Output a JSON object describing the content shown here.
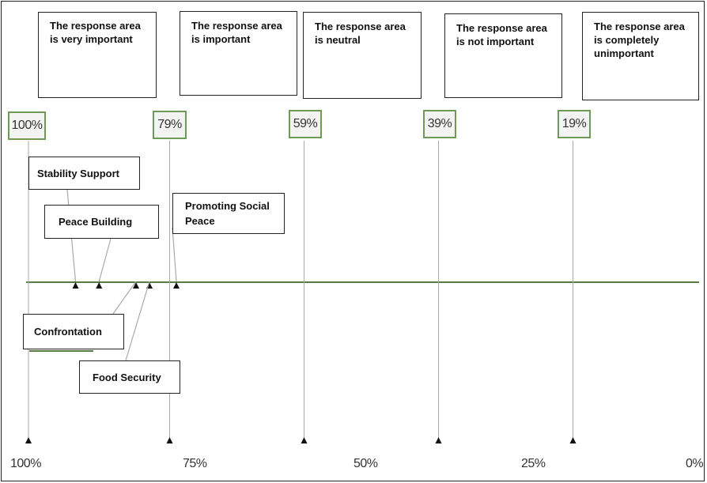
{
  "zones": [
    {
      "text": "The response area is very important"
    },
    {
      "text": "The response area is important"
    },
    {
      "text": "The response area is neutral"
    },
    {
      "text": "The response area is not important"
    },
    {
      "text": "The response area is completely unimportant"
    }
  ],
  "markers": [
    {
      "label": "100%",
      "value": 100
    },
    {
      "label": "79%",
      "value": 79
    },
    {
      "label": "59%",
      "value": 59
    },
    {
      "label": "39%",
      "value": 39
    },
    {
      "label": "19%",
      "value": 19
    }
  ],
  "items": [
    {
      "label": "Stability Support",
      "value": 93
    },
    {
      "label": "Peace Building",
      "value": 89.5
    },
    {
      "label": "Confrontation",
      "value": 84
    },
    {
      "label": "Food Security",
      "value": 82
    },
    {
      "label": "Promoting Social Peace",
      "value": 78
    }
  ],
  "axis_ticks": [
    "100%",
    "75%",
    "50%",
    "25%",
    "0%"
  ],
  "colors": {
    "scale_line": "#5a7a44",
    "marker_border": "#6d9a56",
    "guide_line": "#aaaaaa"
  }
}
